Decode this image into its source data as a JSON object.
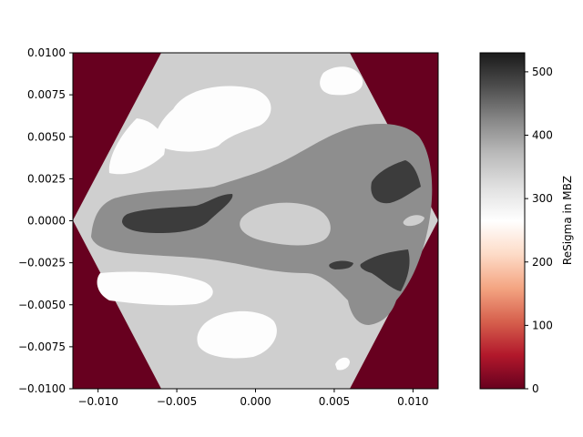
{
  "chart_data": {
    "type": "heatmap",
    "title": "",
    "xlabel": "",
    "ylabel": "",
    "xlim": [
      -0.0116,
      0.0116
    ],
    "ylim": [
      -0.01,
      0.01
    ],
    "x_ticks": [
      "−0.010",
      "−0.005",
      "0.000",
      "0.005",
      "0.010"
    ],
    "x_tick_values": [
      -0.01,
      -0.005,
      0.0,
      0.005,
      0.01
    ],
    "y_ticks": [
      "0.0100",
      "0.0075",
      "0.0050",
      "0.0025",
      "0.0000",
      "−0.0025",
      "−0.0050",
      "−0.0075",
      "−0.0100"
    ],
    "y_tick_values": [
      0.01,
      0.0075,
      0.005,
      0.0025,
      0.0,
      -0.0025,
      -0.005,
      -0.0075,
      -0.01
    ],
    "region": "hexagonal Brillouin zone; value 0 outside the zone",
    "outside_value": 0,
    "levels": [
      {
        "name": "white band",
        "value": 290,
        "color": "#fdfdfd"
      },
      {
        "name": "light gray band",
        "value": 370,
        "color": "#cfcfcf"
      },
      {
        "name": "mid gray band",
        "value": 440,
        "color": "#8e8e8e"
      },
      {
        "name": "dark gray band",
        "value": 510,
        "color": "#3c3c3c"
      }
    ],
    "grid": false,
    "colorbar": {
      "label": "ReSigma in MBZ",
      "min": 0,
      "max": 530,
      "ticks": [
        "0",
        "100",
        "200",
        "300",
        "400",
        "500"
      ],
      "tick_values": [
        0,
        100,
        200,
        300,
        400,
        500
      ],
      "colormap": "RdGy",
      "colors": [
        "#67001f",
        "#b2182b",
        "#d6604d",
        "#f4a582",
        "#fddbc7",
        "#ffffff",
        "#e0e0e0",
        "#bababa",
        "#878787",
        "#4d4d4d",
        "#1a1a1a"
      ]
    }
  }
}
